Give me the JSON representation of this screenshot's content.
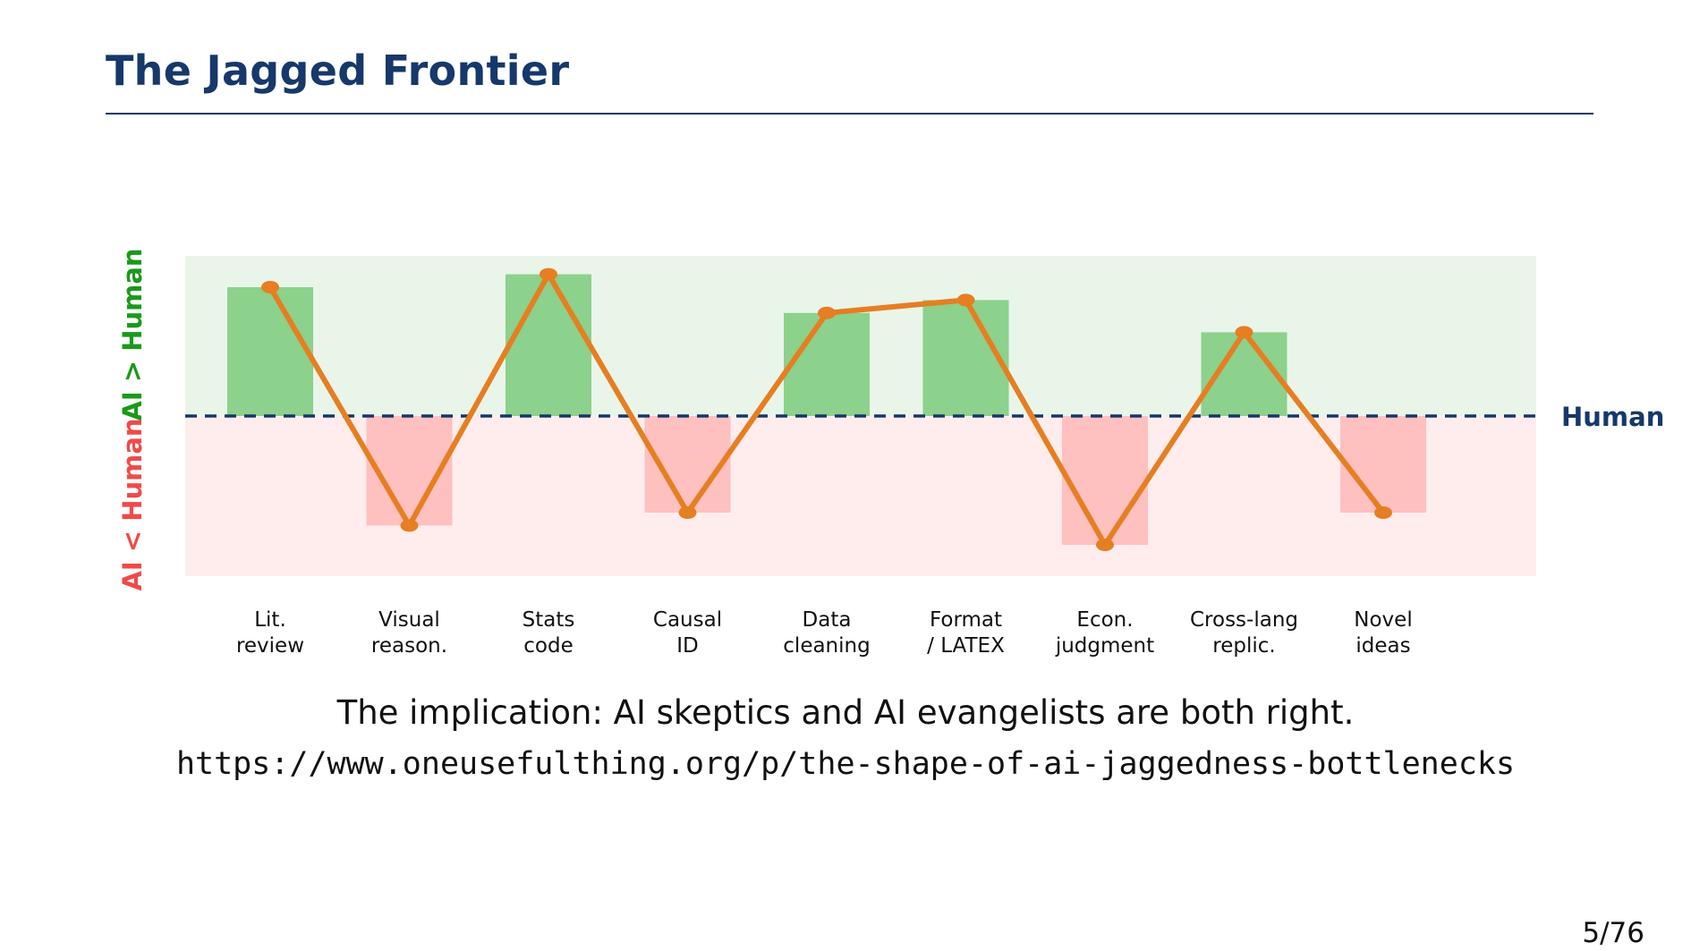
{
  "slide": {
    "title": "The Jagged Frontier",
    "implication": "The implication: AI skeptics and AI evangelists are both right.",
    "url": "https://www.oneusefulthing.org/p/the-shape-of-ai-jaggedness-bottlenecks",
    "page": "5/76"
  },
  "chart_data": {
    "type": "bar",
    "categories": [
      [
        "Lit.",
        "review"
      ],
      [
        "Visual",
        "reason."
      ],
      [
        "Stats",
        "code"
      ],
      [
        "Causal",
        "ID"
      ],
      [
        "Data",
        "cleaning"
      ],
      [
        "Format",
        "/ LATEX"
      ],
      [
        "Econ.",
        "judgment"
      ],
      [
        "Cross-lang",
        "replic."
      ],
      [
        "Novel",
        "ideas"
      ]
    ],
    "values": [
      0.8,
      -0.68,
      0.88,
      -0.6,
      0.64,
      0.72,
      -0.8,
      0.52,
      -0.6
    ],
    "ylim": [
      -1,
      1
    ],
    "baseline_label": "Human",
    "upper_region_label": "AI > Human",
    "lower_region_label": "AI < Human",
    "baseline_style": "dashed",
    "line_overlay": true,
    "colors": {
      "positive_bar": "#8cd18c",
      "negative_bar": "#ffc0c0",
      "upper_region": "#e9f5e9",
      "lower_region": "#ffeded",
      "line": "#e67e22",
      "baseline": "#16386b",
      "upper_label": "#1a9a1a",
      "lower_label": "#f04a4a"
    }
  }
}
